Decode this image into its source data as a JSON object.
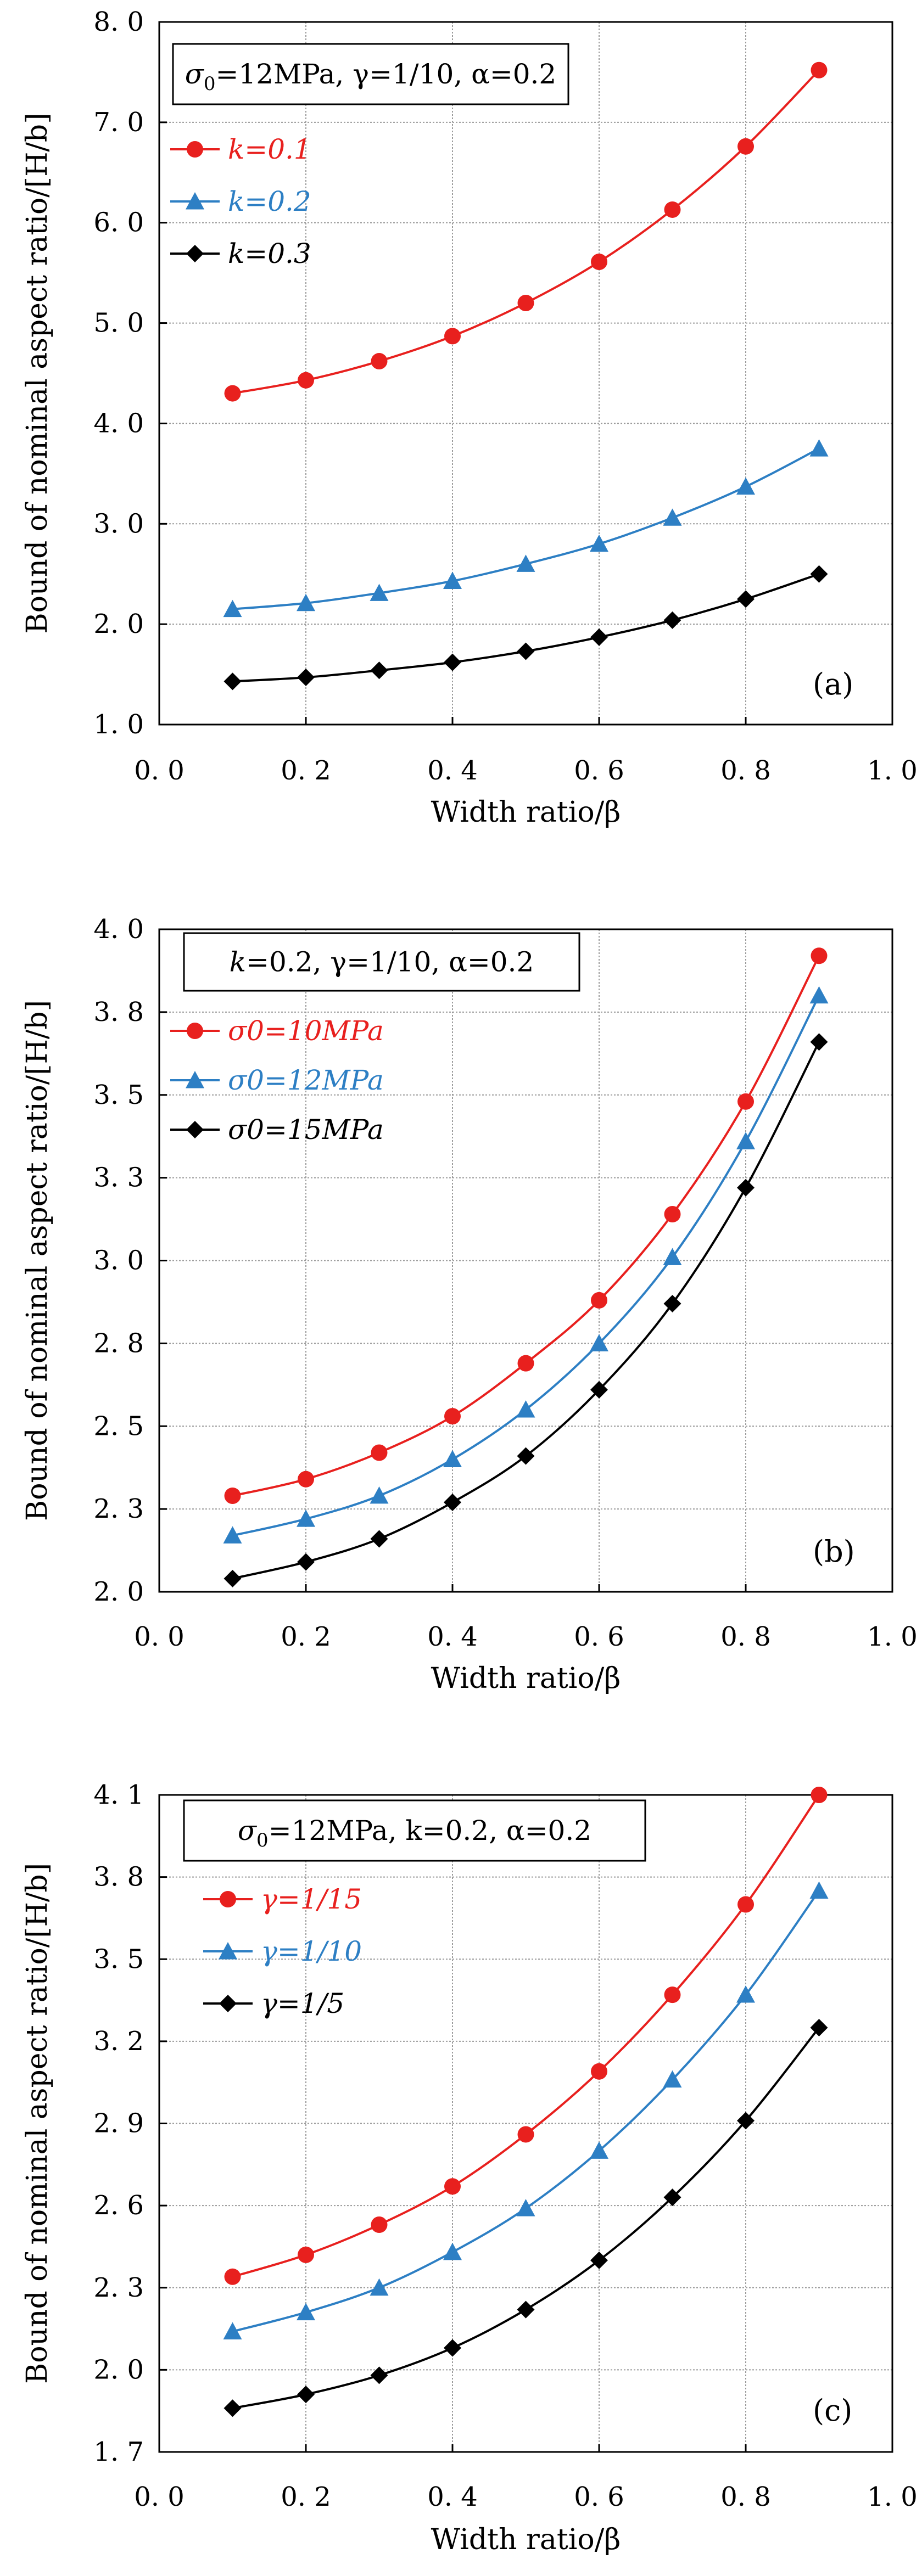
{
  "chart_data": [
    {
      "type": "line",
      "panel_label": "(a)",
      "param_box": {
        "prefix": "σ",
        "subscript": "0",
        "rest": "=12MPa, γ=1/10, α=0.2"
      },
      "xlabel": "Width ratio/β",
      "ylabel": "Bound of nominal aspect ratio/[H/b]",
      "xlim": [
        0.0,
        1.0
      ],
      "ylim": [
        1.0,
        8.0
      ],
      "x_ticks": [
        "0. 0",
        "0. 2",
        "0. 4",
        "0. 6",
        "0. 8",
        "1. 0"
      ],
      "y_ticks": [
        "1. 0",
        "2. 0",
        "3. 0",
        "4. 0",
        "5. 0",
        "6. 0",
        "7. 0",
        "8. 0"
      ],
      "x": [
        0.1,
        0.2,
        0.3,
        0.4,
        0.5,
        0.6,
        0.7,
        0.8,
        0.9
      ],
      "series": [
        {
          "name": "k=0.1",
          "color": "#e8201e",
          "marker": "circle",
          "values": [
            4.3,
            4.43,
            4.62,
            4.87,
            5.2,
            5.61,
            6.13,
            6.76,
            7.52
          ]
        },
        {
          "name": "k=0.2",
          "color": "#2d7fc4",
          "marker": "triangle",
          "values": [
            2.15,
            2.21,
            2.31,
            2.43,
            2.6,
            2.8,
            3.06,
            3.37,
            3.75
          ]
        },
        {
          "name": "k=0.3",
          "color": "#000000",
          "marker": "diamond",
          "values": [
            1.43,
            1.47,
            1.54,
            1.62,
            1.73,
            1.87,
            2.04,
            2.25,
            2.5
          ]
        }
      ]
    },
    {
      "type": "line",
      "panel_label": "(b)",
      "param_box": {
        "prefix": "k",
        "subscript": "",
        "rest": "=0.2, γ=1/10, α=0.2"
      },
      "xlabel": "Width ratio/β",
      "ylabel": "Bound of nominal aspect ratio/[H/b]",
      "xlim": [
        0.0,
        1.0
      ],
      "ylim": [
        2.0,
        4.0
      ],
      "x_ticks": [
        "0. 0",
        "0. 2",
        "0. 4",
        "0. 6",
        "0. 8",
        "1. 0"
      ],
      "y_ticks": [
        "2. 0",
        "2. 3",
        "2. 5",
        "2. 8",
        "3. 0",
        "3. 3",
        "3. 5",
        "3. 8",
        "4. 0"
      ],
      "x": [
        0.1,
        0.2,
        0.3,
        0.4,
        0.5,
        0.6,
        0.7,
        0.8,
        0.9
      ],
      "series": [
        {
          "name": "σ0=10MPa",
          "color": "#e8201e",
          "marker": "circle",
          "values": [
            2.29,
            2.34,
            2.42,
            2.53,
            2.69,
            2.88,
            3.14,
            3.48,
            3.92
          ]
        },
        {
          "name": "σ0=12MPa",
          "color": "#2d7fc4",
          "marker": "triangle",
          "values": [
            2.17,
            2.22,
            2.29,
            2.4,
            2.55,
            2.75,
            3.01,
            3.36,
            3.8
          ]
        },
        {
          "name": "σ0=15MPa",
          "color": "#000000",
          "marker": "diamond",
          "values": [
            2.04,
            2.09,
            2.16,
            2.27,
            2.41,
            2.61,
            2.87,
            3.22,
            3.66
          ]
        }
      ]
    },
    {
      "type": "line",
      "panel_label": "(c)",
      "param_box": {
        "prefix": "σ",
        "subscript": "0",
        "rest": "=12MPa, k=0.2, α=0.2"
      },
      "xlabel": "Width ratio/β",
      "ylabel": "Bound of nominal aspect ratio/[H/b]",
      "xlim": [
        0.0,
        1.0
      ],
      "ylim": [
        1.7,
        4.1
      ],
      "x_ticks": [
        "0. 0",
        "0. 2",
        "0. 4",
        "0. 6",
        "0. 8",
        "1. 0"
      ],
      "y_ticks": [
        "1. 7",
        "2. 0",
        "2. 3",
        "2. 6",
        "2. 9",
        "3. 2",
        "3. 5",
        "3. 8",
        "4. 1"
      ],
      "x": [
        0.1,
        0.2,
        0.3,
        0.4,
        0.5,
        0.6,
        0.7,
        0.8,
        0.9
      ],
      "series": [
        {
          "name": "γ=1/15",
          "color": "#e8201e",
          "marker": "circle",
          "values": [
            2.34,
            2.42,
            2.53,
            2.67,
            2.86,
            3.09,
            3.37,
            3.7,
            4.1
          ]
        },
        {
          "name": "γ=1/10",
          "color": "#2d7fc4",
          "marker": "triangle",
          "values": [
            2.14,
            2.21,
            2.3,
            2.43,
            2.59,
            2.8,
            3.06,
            3.37,
            3.75
          ]
        },
        {
          "name": "γ=1/5",
          "color": "#000000",
          "marker": "diamond",
          "values": [
            1.86,
            1.91,
            1.98,
            2.08,
            2.22,
            2.4,
            2.63,
            2.91,
            3.25
          ]
        }
      ]
    }
  ]
}
